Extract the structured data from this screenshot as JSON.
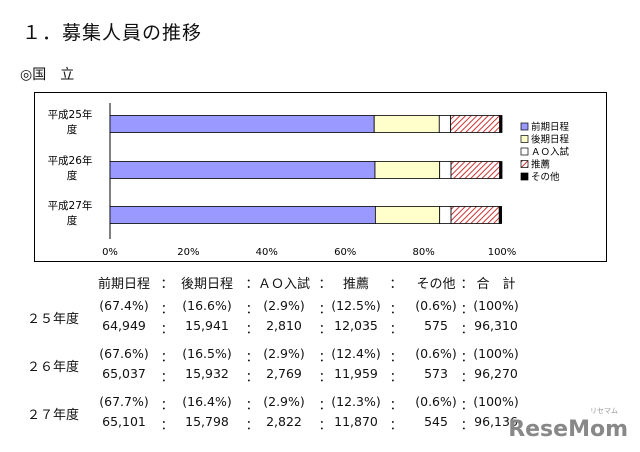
{
  "title": "１．募集人員の推移",
  "section_label": "◎国　立",
  "chart_data": {
    "type": "bar",
    "orientation": "horizontal",
    "stacked": "percent",
    "categories": [
      "平成25年度",
      "平成26年度",
      "平成27年度"
    ],
    "category_lines": [
      [
        "平成25年",
        "度"
      ],
      [
        "平成26年",
        "度"
      ],
      [
        "平成27年",
        "度"
      ]
    ],
    "series": [
      {
        "name": "前期日程",
        "values": [
          67.4,
          67.6,
          67.7
        ],
        "color": "#9999ff",
        "pattern": "solid"
      },
      {
        "name": "後期日程",
        "values": [
          16.6,
          16.5,
          16.4
        ],
        "color": "#ffffcc",
        "pattern": "solid"
      },
      {
        "name": "ＡＯ入試",
        "values": [
          2.9,
          2.9,
          2.9
        ],
        "color": "#ffffff",
        "pattern": "solid"
      },
      {
        "name": "推薦",
        "values": [
          12.5,
          12.4,
          12.3
        ],
        "color": "#cc3333",
        "pattern": "hatch"
      },
      {
        "name": "その他",
        "values": [
          0.6,
          0.6,
          0.6
        ],
        "color": "#000000",
        "pattern": "solid"
      }
    ],
    "bar_order_note": "",
    "xlim": [
      0,
      100
    ],
    "xticks": [
      "0%",
      "20%",
      "40%",
      "60%",
      "80%",
      "100%"
    ],
    "legend_position": "right",
    "grid": false
  },
  "table": {
    "headers": [
      "前期日程",
      "：",
      "後期日程",
      "：",
      "ＡＯ入試",
      "：",
      "推薦",
      "：",
      "その他",
      "：",
      "合　計"
    ],
    "rows": [
      {
        "label": "２５年度",
        "percent": [
          "(67.4%)",
          "：",
          "(16.6%)",
          "：",
          "(2.9%)",
          "：",
          "(12.5%)",
          "：",
          "(0.6%)",
          "：",
          "(100%)"
        ],
        "count": [
          "64,949",
          "：",
          "15,941",
          "：",
          "2,810",
          "：",
          "12,035",
          "：",
          "575",
          "：",
          "96,310"
        ]
      },
      {
        "label": "２６年度",
        "percent": [
          "(67.6%)",
          "：",
          "(16.5%)",
          "：",
          "(2.9%)",
          "：",
          "(12.4%)",
          "：",
          "(0.6%)",
          "：",
          "(100%)"
        ],
        "count": [
          "65,037",
          "：",
          "15,932",
          "：",
          "2,769",
          "：",
          "11,959",
          "：",
          "573",
          "：",
          "96,270"
        ]
      },
      {
        "label": "２７年度",
        "percent": [
          "(67.7%)",
          "：",
          "(16.4%)",
          "：",
          "(2.9%)",
          "：",
          "(12.3%)",
          "：",
          "(0.6%)",
          "：",
          "(100%)"
        ],
        "count": [
          "65,101",
          "：",
          "15,798",
          "：",
          "2,822",
          "：",
          "11,870",
          "：",
          "545",
          "：",
          "96,136"
        ]
      }
    ]
  },
  "watermark": {
    "text": "ReseMom",
    "sub": "リセマム"
  }
}
